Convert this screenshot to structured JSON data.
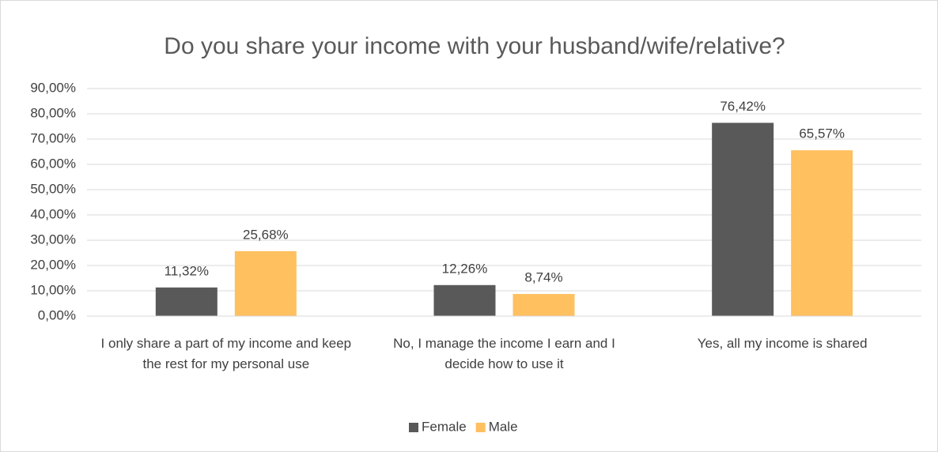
{
  "chart_data": {
    "type": "bar",
    "title": "Do you share your income with your husband/wife/relative?",
    "categories": [
      "I only share a part of my income and keep the rest for my personal use",
      "No, I manage the income I earn and I decide how to use it",
      "Yes, all my income is shared"
    ],
    "series": [
      {
        "name": "Female",
        "color": "#595959",
        "values": [
          11.32,
          12.26,
          76.42
        ],
        "value_labels": [
          "11,32%",
          "12,26%",
          "76,42%"
        ]
      },
      {
        "name": "Male",
        "color": "#ffc05f",
        "values": [
          25.68,
          8.74,
          65.57
        ],
        "value_labels": [
          "25,68%",
          "8,74%",
          "65,57%"
        ]
      }
    ],
    "ylim": [
      0,
      90
    ],
    "yticks": [
      {
        "value": 0,
        "label": "0,00%"
      },
      {
        "value": 10,
        "label": "10,00%"
      },
      {
        "value": 20,
        "label": "20,00%"
      },
      {
        "value": 30,
        "label": "30,00%"
      },
      {
        "value": 40,
        "label": "40,00%"
      },
      {
        "value": 50,
        "label": "50,00%"
      },
      {
        "value": 60,
        "label": "60,00%"
      },
      {
        "value": 70,
        "label": "70,00%"
      },
      {
        "value": 80,
        "label": "80,00%"
      },
      {
        "value": 90,
        "label": "90,00%"
      }
    ],
    "grid": true,
    "legend": "bottom"
  }
}
